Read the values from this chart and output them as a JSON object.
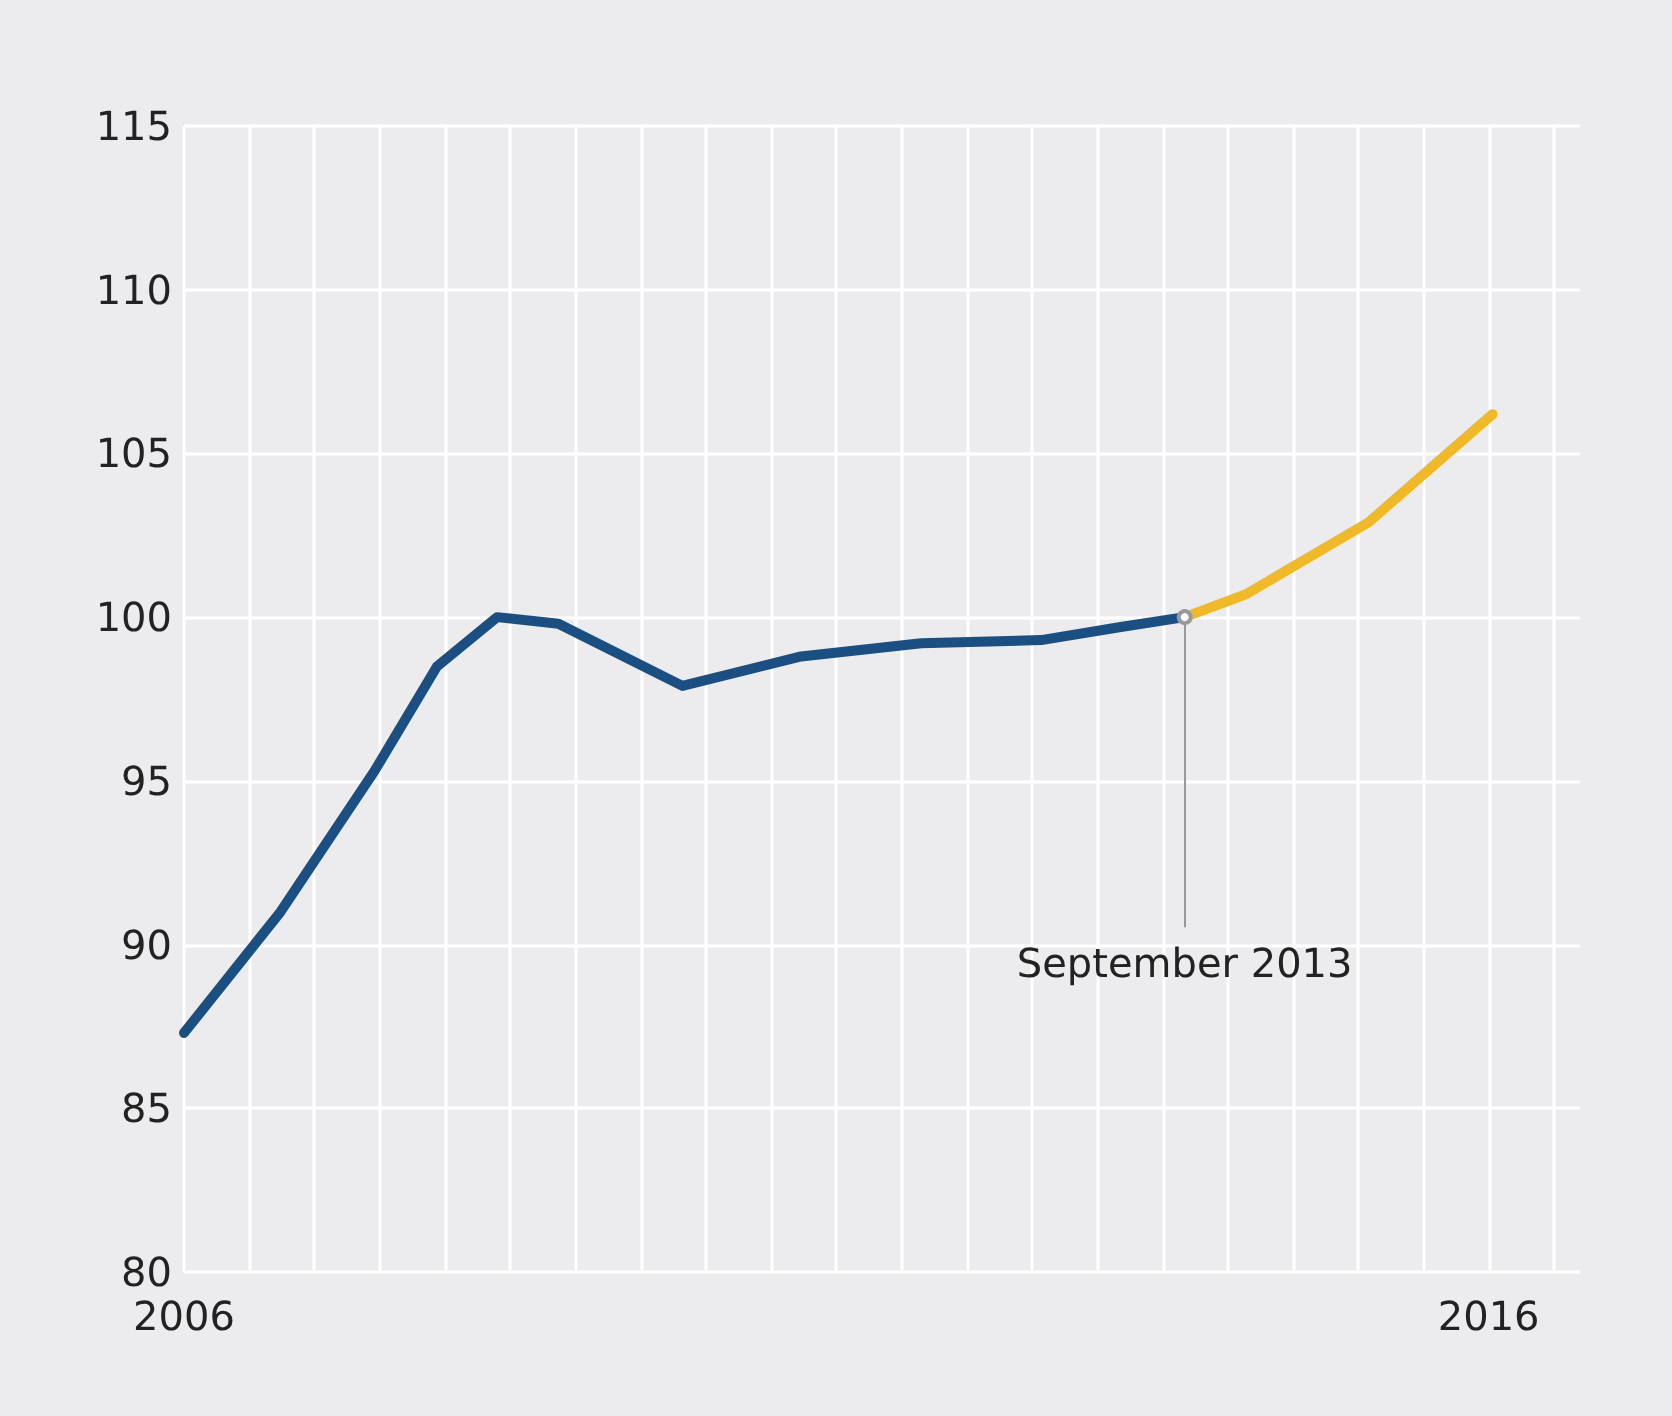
{
  "chart_data": {
    "type": "line",
    "ref_lines": [
      {
        "axis": "x",
        "value": 2013.67,
        "label": "September 2013",
        "color": "#999999"
      }
    ],
    "series": [
      {
        "color": "#1b4f82",
        "x": [
          2006.0,
          2006.74,
          2007.46,
          2007.94,
          2008.4,
          2008.87,
          2009.82,
          2010.73,
          2011.65,
          2012.57,
          2013.18,
          2013.67
        ],
        "values": [
          87.3,
          91.0,
          95.3,
          98.5,
          100.0,
          99.8,
          97.9,
          98.8,
          99.2,
          99.3,
          99.7,
          100.0
        ]
      },
      {
        "color": "#f0b92a",
        "x": [
          2013.67,
          2014.14,
          2015.08,
          2016.03
        ],
        "values": [
          100.0,
          100.7,
          102.9,
          106.2
        ]
      }
    ],
    "xlim": [
      2006,
      2016.7
    ],
    "xticks": [
      2006,
      {
        "value": 2006.5,
        "label": null
      },
      {
        "value": 2007,
        "label": null
      },
      {
        "value": 2007.5,
        "label": null
      },
      {
        "value": 2008,
        "label": null
      },
      {
        "value": 2008.5,
        "label": null
      },
      {
        "value": 2009,
        "label": null
      },
      {
        "value": 2009.5,
        "label": null
      },
      {
        "value": 2010,
        "label": null
      },
      {
        "value": 2010.5,
        "label": null
      },
      {
        "value": 2011,
        "label": null
      },
      {
        "value": 2011.5,
        "label": null
      },
      {
        "value": 2012,
        "label": null
      },
      {
        "value": 2012.5,
        "label": null
      },
      {
        "value": 2013,
        "label": null
      },
      {
        "value": 2013.5,
        "label": null
      },
      {
        "value": 2014,
        "label": null
      },
      {
        "value": 2014.5,
        "label": null
      },
      {
        "value": 2015,
        "label": null
      },
      {
        "value": 2015.5,
        "label": null
      },
      2016,
      {
        "value": 2016.5,
        "label": null
      }
    ],
    "ylim": [
      80,
      115
    ],
    "yticks": [
      80,
      85,
      90,
      95,
      100,
      105,
      110,
      115
    ],
    "grid": true,
    "marker": "none",
    "line_style": "solid"
  }
}
